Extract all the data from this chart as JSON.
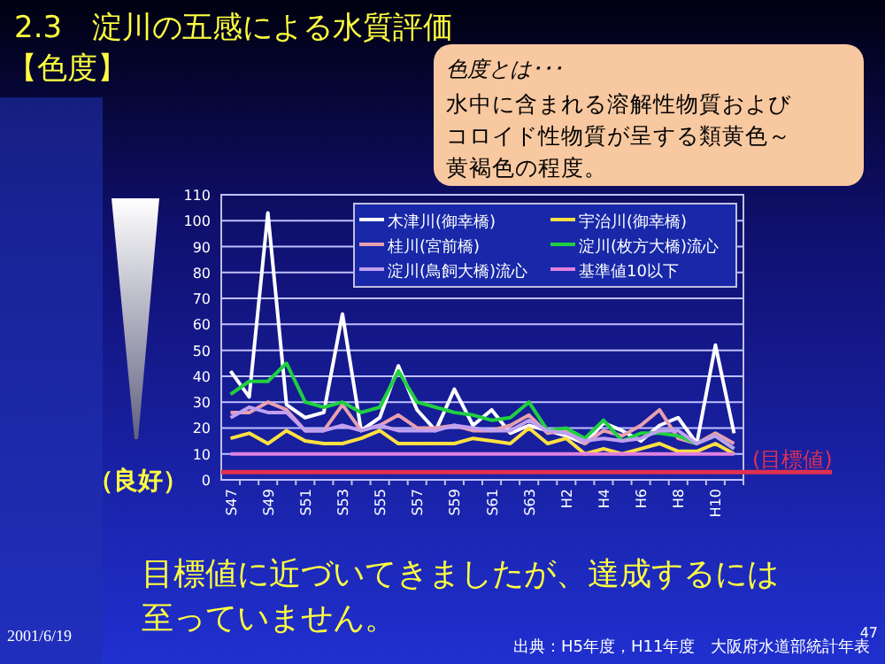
{
  "chart_data": {
    "type": "line",
    "title": "2.3　淀川の五感による水質評価",
    "subtitle": "【色度】",
    "categories": [
      "S47",
      null,
      "S49",
      null,
      "S51",
      null,
      "S53",
      null,
      "S55",
      null,
      "S57",
      null,
      "S59",
      null,
      "S61",
      null,
      "S63",
      null,
      "H2",
      null,
      "H4",
      null,
      "H6",
      null,
      "H8",
      null,
      "H10",
      null
    ],
    "series": [
      {
        "name": "木津川(御幸橋)",
        "color": "#ffffff",
        "values": [
          42,
          32,
          103,
          29,
          24,
          26,
          64,
          19,
          24,
          44,
          27,
          19,
          35,
          21,
          27,
          18,
          21,
          19,
          17,
          14,
          22,
          19,
          15,
          21,
          24,
          14,
          52,
          18
        ]
      },
      {
        "name": "宇治川(御幸橋)",
        "color": "#ffe040",
        "values": [
          16,
          18,
          14,
          19,
          15,
          14,
          14,
          16,
          19,
          14,
          14,
          14,
          14,
          16,
          15,
          14,
          20,
          14,
          16,
          10,
          12,
          10,
          12,
          14,
          11,
          11,
          14,
          10
        ]
      },
      {
        "name": "桂川(宮前橋)",
        "color": "#e8a0b0",
        "values": [
          26,
          26,
          30,
          27,
          19,
          19,
          29,
          19,
          21,
          25,
          20,
          20,
          21,
          19,
          19,
          21,
          25,
          18,
          19,
          14,
          19,
          17,
          21,
          27,
          16,
          14,
          18,
          14
        ]
      },
      {
        "name": "淀川(枚方大橋)流心",
        "color": "#20d040",
        "values": [
          33,
          38,
          38,
          45,
          30,
          28,
          30,
          26,
          28,
          42,
          30,
          28,
          26,
          25,
          23,
          24,
          30,
          19,
          20,
          16,
          23,
          15,
          18,
          18,
          17,
          14,
          17,
          12
        ]
      },
      {
        "name": "淀川(鳥飼大橋)流心",
        "color": "#c0a0f0",
        "values": [
          24,
          28,
          26,
          26,
          19,
          19,
          21,
          19,
          21,
          19,
          19,
          19,
          21,
          20,
          19,
          19,
          23,
          19,
          18,
          15,
          16,
          15,
          16,
          19,
          19,
          14,
          17,
          12
        ]
      },
      {
        "name": "基準値10以下",
        "color": "#e080e0",
        "values": [
          10,
          10,
          10,
          10,
          10,
          10,
          10,
          10,
          10,
          10,
          10,
          10,
          10,
          10,
          10,
          10,
          10,
          10,
          10,
          10,
          10,
          10,
          10,
          10,
          10,
          10,
          10,
          10
        ]
      }
    ],
    "ylim": [
      0,
      110
    ],
    "yticks": [
      0,
      10,
      20,
      30,
      40,
      50,
      60,
      70,
      80,
      90,
      100,
      110
    ],
    "grid": "y",
    "legend": "top right",
    "marker": "none",
    "line_style": "solid",
    "ref_lines": [
      {
        "axis": "y",
        "value": 3,
        "label": "(目標値)",
        "color": "#e03050"
      }
    ],
    "annotations": [
      "色度とは･･･",
      "水中に含まれる溶解性物質および",
      "コロイド性物質が呈する類黄色～",
      "黄褐色の程度。",
      "（良好）",
      "目標値に近づいてきましたが、達成するには",
      "至っていません。",
      "2001/6/19",
      "出典：H5年度，H11年度　大阪府水道部統計年表",
      "47"
    ]
  }
}
